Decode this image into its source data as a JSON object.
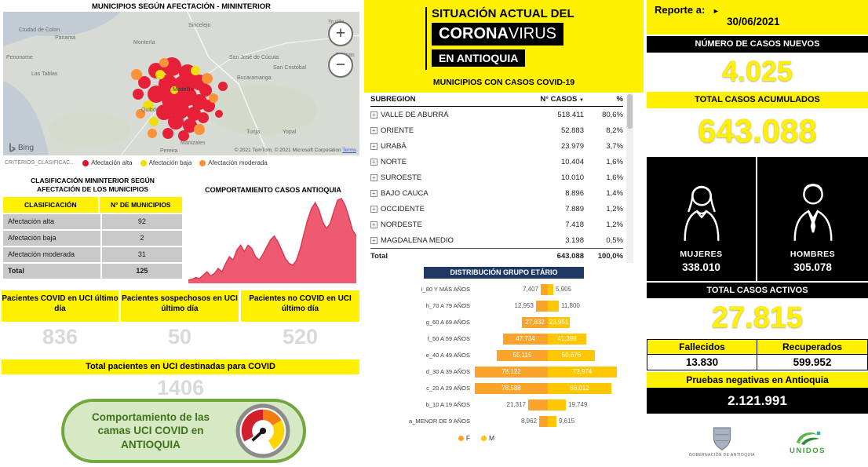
{
  "theme": {
    "yellow": "#FFF100",
    "orange-f": "#FBA42C",
    "gold-m": "#FFC603",
    "red-area": "#EE5A6F",
    "red-line": "#D93A54",
    "navy": "#1F3864",
    "red-alta": "#E8112D",
    "orange-mod": "#FF8C2E",
    "green-bg": "#D6E8C4",
    "green-border": "#71A83E",
    "green-text": "#3F7319",
    "gray-num": "#D9D9D9"
  },
  "left": {
    "map_title": "MUNICIPIOS SEGÚN AFECTACIÓN - MININTERIOR",
    "map": {
      "zoom_in": "+",
      "zoom_out": "−",
      "bing_label": "Bing",
      "attribution": "© 2021 TomTom, © 2021 Microsoft Corporation",
      "terms_link": "Terms",
      "labels": [
        "Ciudad de Colon",
        "Panamá",
        "Penonome",
        "Las Tablas",
        "Montería",
        "Sincelejo",
        "Trujillo",
        "Barinas",
        "San José de Cúcuta",
        "San Cristóbal",
        "Bucaramanga",
        "Medellín",
        "Quibdó",
        "Tunja",
        "Yopal",
        "Manizales",
        "Pereira"
      ]
    },
    "criteria_legend": {
      "title": "CRITERIOS_CLASIFICAC...",
      "items": [
        {
          "label": "Afectación alta",
          "color": "#E8112D"
        },
        {
          "label": "Afectación baja",
          "color": "#F0DF00"
        },
        {
          "label": "Afectación moderada",
          "color": "#FF8C2E"
        }
      ]
    },
    "classification": {
      "title_line1": "CLASIFICACIÓN MININTERIOR SEGÚN",
      "title_line2": "AFECTACIÓN DE LOS MUNICIPIOS",
      "col_classification": "CLASIFICACIÓN",
      "col_municipios": "N° DE MUNICIPIOS",
      "rows": [
        {
          "label": "Afectación alta",
          "value": "92"
        },
        {
          "label": "Afectación baja",
          "value": "2"
        },
        {
          "label": "Afectación moderada",
          "value": "31"
        }
      ],
      "total_label": "Total",
      "total_value": "125"
    },
    "cases_chart_title": "COMPORTAMIENTO CASOS ANTIOQUIA",
    "uci_panels": [
      {
        "title": "Pacientes COVID en UCI último día",
        "value": "836"
      },
      {
        "title": "Pacientes sospechosos en UCI último día",
        "value": "50"
      },
      {
        "title": "Pacientes no COVID en UCI último día",
        "value": "520"
      }
    ],
    "uci_total_title": "Total pacientes en UCI destinadas para COVID",
    "uci_total_value": "1406",
    "green_box_text": "Comportamiento de las camas UCI COVID en ANTIOQUIA"
  },
  "middle": {
    "header": {
      "line1": "SITUACIÓN ACTUAL DEL",
      "corona": "CORONA",
      "virus": "VIRUS",
      "line3": "EN ANTIOQUIA"
    },
    "cases_table": {
      "title": "MUNICIPIOS CON CASOS COVID-19",
      "col_subregion": "SUBREGION",
      "col_cases": "N° CASOS",
      "col_pct": "%",
      "sort_icon": "▼",
      "expand_glyph": "+",
      "rows": [
        {
          "name": "VALLE DE ABURRÁ",
          "cases": "518.411",
          "pct": "80,6%"
        },
        {
          "name": "ORIENTE",
          "cases": "52.883",
          "pct": "8,2%"
        },
        {
          "name": "URABÁ",
          "cases": "23.979",
          "pct": "3,7%"
        },
        {
          "name": "NORTE",
          "cases": "10.404",
          "pct": "1,6%"
        },
        {
          "name": "SUROESTE",
          "cases": "10.010",
          "pct": "1,6%"
        },
        {
          "name": "BAJO CAUCA",
          "cases": "8.896",
          "pct": "1,4%"
        },
        {
          "name": "OCCIDENTE",
          "cases": "7.889",
          "pct": "1,2%"
        },
        {
          "name": "NORDESTE",
          "cases": "7.418",
          "pct": "1,2%"
        },
        {
          "name": "MAGDALENA MEDIO",
          "cases": "3.198",
          "pct": "0,5%"
        }
      ],
      "total": {
        "name": "Total",
        "cases": "643.088",
        "pct": "100,0%"
      }
    },
    "age_chart": {
      "title": "DISTRIBUCIÓN GRUPO ETÁRIO",
      "legend_f": "F",
      "legend_m": "M",
      "rows": [
        {
          "label": "i_80 Y MÁS AÑOS",
          "f": 7407,
          "m": 5905,
          "f_label": "7,407",
          "m_label": "5,905",
          "inside": false
        },
        {
          "label": "h_70 A 79 AÑOS",
          "f": 12953,
          "m": 11800,
          "f_label": "12,953",
          "m_label": "11,800",
          "inside": false
        },
        {
          "label": "g_60 A 69 AÑOS",
          "f": 27832,
          "m": 23951,
          "f_label": "27,832",
          "m_label": "23,951",
          "inside": true
        },
        {
          "label": "f_50 A 59 AÑOS",
          "f": 47734,
          "m": 41398,
          "f_label": "47,734",
          "m_label": "41,398",
          "inside": true
        },
        {
          "label": "e_40 A 49 AÑOS",
          "f": 55115,
          "m": 50676,
          "f_label": "55,115",
          "m_label": "50,676",
          "inside": true
        },
        {
          "label": "d_30 A 39 AÑOS",
          "f": 78122,
          "m": 73974,
          "f_label": "78,122",
          "m_label": "73,974",
          "inside": true
        },
        {
          "label": "c_20 A 29 AÑOS",
          "f": 78588,
          "m": 68012,
          "f_label": "78,588",
          "m_label": "68,012",
          "inside": true
        },
        {
          "label": "b_10 A 19 AÑOS",
          "f": 21317,
          "m": 19749,
          "f_label": "21,317",
          "m_label": "19,749",
          "inside": false
        },
        {
          "label": "a_MENOR DE 9 AÑOS",
          "f": 8962,
          "m": 9615,
          "f_label": "8,962",
          "m_label": "9,615",
          "inside": false
        }
      ]
    }
  },
  "right": {
    "report_label": "Reporte a:",
    "report_marker": "►",
    "report_date": "30/06/2021",
    "new_cases_title": "NÚMERO DE CASOS NUEVOS",
    "new_cases_value": "4.025",
    "total_cases_title": "TOTAL CASOS ACUMULADOS",
    "total_cases_value": "643.088",
    "women_label": "MUJERES",
    "women_value": "338.010",
    "men_label": "HOMBRES",
    "men_value": "305.078",
    "active_title": "TOTAL CASOS ACTIVOS",
    "active_value": "27.815",
    "deaths_label": "Fallecidos",
    "deaths_value": "13.830",
    "recovered_label": "Recuperados",
    "recovered_value": "599.952",
    "negative_title": "Pruebas negativas en Antioquia",
    "negative_value": "2.121.991",
    "gov_caption": "GOBERNACIÓN DE ANTIOQUIA",
    "unidos_caption": "UNIDOS"
  },
  "chart_data": [
    {
      "id": "classification_table",
      "type": "table",
      "title": "CLASIFICACIÓN MININTERIOR SEGÚN AFECTACIÓN DE LOS MUNICIPIOS",
      "columns": [
        "CLASIFICACIÓN",
        "N° DE MUNICIPIOS"
      ],
      "rows": [
        [
          "Afectación alta",
          92
        ],
        [
          "Afectación baja",
          2
        ],
        [
          "Afectación moderada",
          31
        ],
        [
          "Total",
          125
        ]
      ]
    },
    {
      "id": "cases_curve",
      "type": "area",
      "title": "COMPORTAMIENTO CASOS ANTIOQUIA",
      "note": "no axis labels or gridlines visible; curve shape estimated, values normalized 0-1",
      "values_normalized": [
        0.02,
        0.03,
        0.05,
        0.04,
        0.08,
        0.12,
        0.07,
        0.1,
        0.16,
        0.12,
        0.22,
        0.3,
        0.26,
        0.38,
        0.44,
        0.36,
        0.44,
        0.4,
        0.3,
        0.26,
        0.33,
        0.42,
        0.5,
        0.55,
        0.48,
        0.38,
        0.28,
        0.22,
        0.2,
        0.26,
        0.4,
        0.58,
        0.75,
        0.88,
        0.95,
        0.86,
        0.72,
        0.64,
        0.7,
        0.85,
        0.98,
        1.0,
        0.92,
        0.78,
        0.62,
        0.55
      ]
    },
    {
      "id": "subregion_table",
      "type": "table",
      "title": "MUNICIPIOS CON CASOS COVID-19",
      "columns": [
        "SUBREGION",
        "N° CASOS",
        "%"
      ],
      "rows": [
        [
          "VALLE DE ABURRÁ",
          518411,
          80.6
        ],
        [
          "ORIENTE",
          52883,
          8.2
        ],
        [
          "URABÁ",
          23979,
          3.7
        ],
        [
          "NORTE",
          10404,
          1.6
        ],
        [
          "SUROESTE",
          10010,
          1.6
        ],
        [
          "BAJO CAUCA",
          8896,
          1.4
        ],
        [
          "OCCIDENTE",
          7889,
          1.2
        ],
        [
          "NORDESTE",
          7418,
          1.2
        ],
        [
          "MAGDALENA MEDIO",
          3198,
          0.5
        ],
        [
          "Total",
          643088,
          100.0
        ]
      ]
    },
    {
      "id": "age_pyramid",
      "type": "bar",
      "title": "DISTRIBUCIÓN GRUPO ETÁRIO",
      "orientation": "horizontal-butterfly",
      "categories": [
        "i_80 Y MÁS AÑOS",
        "h_70 A 79 AÑOS",
        "g_60 A 69 AÑOS",
        "f_50 A 59 AÑOS",
        "e_40 A 49 AÑOS",
        "d_30 A 39 AÑOS",
        "c_20 A 29 AÑOS",
        "b_10 A 19 AÑOS",
        "a_MENOR DE 9 AÑOS"
      ],
      "series": [
        {
          "name": "F",
          "color": "#FBA42C",
          "values": [
            7407,
            12953,
            27832,
            47734,
            55115,
            78122,
            78588,
            21317,
            8962
          ]
        },
        {
          "name": "M",
          "color": "#FFC603",
          "values": [
            5905,
            11800,
            23951,
            41398,
            50676,
            73974,
            68012,
            19749,
            9615
          ]
        }
      ],
      "legend_position": "bottom"
    }
  ]
}
